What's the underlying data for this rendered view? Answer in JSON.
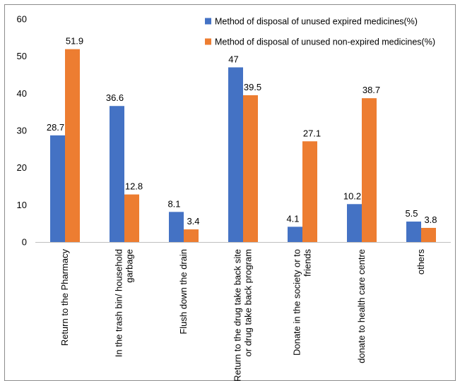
{
  "chart_data": {
    "type": "bar",
    "categories": [
      [
        "Return to the Pharmacy"
      ],
      [
        "In the trash bin/ household",
        "garbage"
      ],
      [
        "Flush down the drain"
      ],
      [
        "Return to the drug take back site",
        "or drug take back program"
      ],
      [
        "Donate in the society or to",
        "friends"
      ],
      [
        "donate to health care centre"
      ],
      [
        "others"
      ]
    ],
    "series": [
      {
        "name": "Method of disposal of unused expired medicines(%)",
        "color": "#4472c4",
        "values": [
          28.7,
          36.6,
          8.1,
          47,
          4.1,
          10.2,
          5.5
        ]
      },
      {
        "name": "Method of disposal of unused non-expired medicines(%)",
        "color": "#ed7d31",
        "values": [
          51.9,
          12.8,
          3.4,
          39.5,
          27.1,
          38.7,
          3.8
        ]
      }
    ],
    "ylim": [
      0,
      60
    ],
    "yticks": [
      0,
      10,
      20,
      30,
      40,
      50,
      60
    ],
    "grid": false,
    "legend_position": "top-right",
    "title": "",
    "xlabel": "",
    "ylabel": ""
  }
}
